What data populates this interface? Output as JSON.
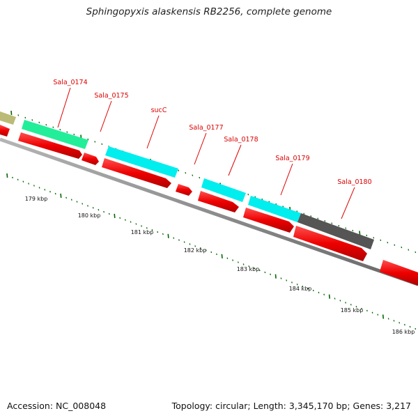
{
  "title": "Sphingopyxis alaskensis RB2256, complete genome",
  "footer": {
    "accession": "Accession: NC_008048",
    "summary": "Topology: circular; Length: 3,345,170 bp; Genes: 3,217"
  },
  "colors": {
    "cds": "#ee0000",
    "gene_cyan": "#00eeee",
    "gene_green": "#22ee99",
    "gene_gray": "#555555",
    "gene_olive": "#bbbb77",
    "label": "#dd0000",
    "tick": "#006600",
    "backbone": "#888888"
  },
  "gene_labels": [
    "Sala_0174",
    "Sala_0175",
    "sucC",
    "Sala_0177",
    "Sala_0178",
    "Sala_0179",
    "Sala_0180"
  ],
  "kbp_labels": [
    "179 kbp",
    "180 kbp",
    "181 kbp",
    "182 kbp",
    "183 kbp",
    "184 kbp",
    "185 kbp",
    "186 kbp"
  ]
}
